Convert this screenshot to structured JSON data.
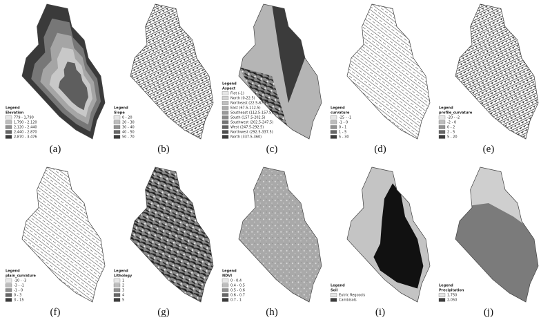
{
  "panels": [
    {
      "label": "(a)",
      "legend": {
        "title": "Legend",
        "subtitle": "Elevation",
        "items": [
          "779 - 1,790",
          "1,790 - 2,120",
          "2,120 - 2,440",
          "2,440 - 2,870",
          "2,870 - 3,476"
        ]
      }
    },
    {
      "label": "(b)",
      "legend": {
        "title": "Legend",
        "subtitle": "Slope",
        "items": [
          "0 - 20",
          "20 - 30",
          "30 - 40",
          "40 - 50",
          "50 - 70"
        ]
      }
    },
    {
      "label": "(c)",
      "legend": {
        "title": "Legend",
        "subtitle": "Aspect",
        "items": [
          "Flat (-1)",
          "North (0-22.5)",
          "Northeast (22.5-67.5)",
          "East (67.5-112.5)",
          "Southeast (112.5-157.5)",
          "South (157.5-202.5)",
          "Southwest (202.5-247.5)",
          "West (247.5-292.5)",
          "Northwest (292.5-337.5)",
          "North (337.5-360)"
        ]
      }
    },
    {
      "label": "(d)",
      "legend": {
        "title": "Legend",
        "subtitle": "curvature",
        "items": [
          "-25 - -1",
          "-1 - 0",
          "0 - 1",
          "1 - 5",
          "5 - 30"
        ]
      }
    },
    {
      "label": "(e)",
      "legend": {
        "title": "Legend",
        "subtitle": "profile_curvature",
        "items": [
          "-20 - -2",
          "-2 - 0",
          "0 - 2",
          "2 - 5",
          "5 - 20"
        ]
      }
    },
    {
      "label": "(f)",
      "legend": {
        "title": "Legend",
        "subtitle": "plain_curvature",
        "items": [
          "-10 - -3",
          "-3 - -1",
          "-1 - 0",
          "0 - 3",
          "3 - 15"
        ]
      }
    },
    {
      "label": "(g)",
      "legend": {
        "title": "Legend",
        "subtitle": "Lithology",
        "items": [
          "1",
          "2",
          "3",
          "4",
          "5"
        ]
      }
    },
    {
      "label": "(h)",
      "legend": {
        "title": "Legend",
        "subtitle": "NDVI",
        "items": [
          "0 - 0.4",
          "0.4 - 0.5",
          "0.5 - 0.6",
          "0.6 - 0.7",
          "0.7 - 1"
        ]
      }
    },
    {
      "label": "(i)",
      "legend": {
        "title": "Legend",
        "subtitle": "Soil",
        "items": [
          "Eutric Regosols",
          "Cambisols"
        ]
      }
    },
    {
      "label": "(j)",
      "legend": {
        "title": "Legend",
        "subtitle": "Precipitation",
        "items": [
          "1,750",
          "2,050"
        ]
      }
    }
  ]
}
